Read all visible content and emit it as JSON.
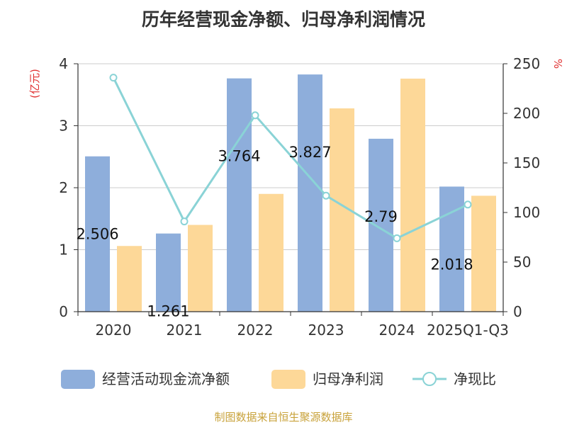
{
  "title": "历年经营现金净额、归母净利润情况",
  "credit": "制图数据来自恒生聚源数据库",
  "colors": {
    "series1": "#8eaedb",
    "series2": "#fdd898",
    "series3": "#8ad3d6"
  },
  "chart_data": {
    "type": "bar",
    "categories": [
      "2020",
      "2021",
      "2022",
      "2023",
      "2024",
      "2025Q1-Q3"
    ],
    "y_left": {
      "unit": "(亿元)",
      "range": [
        0,
        4
      ],
      "ticks": [
        "0",
        "1",
        "2",
        "3",
        "4"
      ]
    },
    "y_right": {
      "unit": "%",
      "range": [
        0,
        250
      ],
      "ticks": [
        "0",
        "50",
        "100",
        "150",
        "200",
        "250"
      ]
    },
    "grid": true,
    "legend_position": "bottom",
    "series": [
      {
        "name": "经营活动现金流净额",
        "type": "bar",
        "axis": "left",
        "values": [
          2.506,
          1.261,
          3.764,
          3.827,
          2.79,
          2.018
        ],
        "labels": [
          "2.506",
          "1.261",
          "3.764",
          "3.827",
          "2.79",
          "2.018"
        ]
      },
      {
        "name": "归母净利润",
        "type": "bar",
        "axis": "left",
        "values": [
          1.06,
          1.4,
          1.9,
          3.28,
          3.76,
          1.87
        ]
      },
      {
        "name": "净现比",
        "type": "line",
        "axis": "right",
        "values": [
          236,
          91,
          198,
          117,
          74,
          108
        ]
      }
    ]
  }
}
